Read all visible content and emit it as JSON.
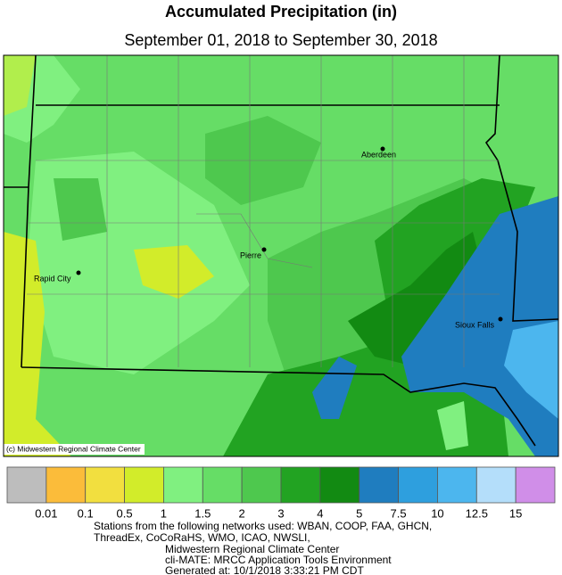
{
  "header": {
    "title": "Accumulated Precipitation (in)",
    "subtitle": "September 01, 2018 to September 30, 2018"
  },
  "map": {
    "cities": [
      "Aberdeen",
      "Pierre",
      "Rapid City",
      "Sioux Falls"
    ],
    "credit": "(c) Midwestern Regional Climate Center"
  },
  "legend": {
    "colors": [
      "#bdbdbd",
      "#fbbc3a",
      "#f2df3f",
      "#d2ec2a",
      "#80f080",
      "#66dd66",
      "#4ec84e",
      "#22a322",
      "#128a12",
      "#1f7dbf",
      "#2e9fde",
      "#4cb6ee",
      "#b4defa",
      "#d08ee8"
    ],
    "labels": [
      0.01,
      0.1,
      0.5,
      1,
      1.5,
      2,
      3,
      4,
      5,
      7.5,
      10,
      12.5,
      15
    ]
  },
  "footer": [
    "Stations from the following networks used: WBAN, COOP, FAA, GHCN,",
    "ThreadEx, CoCoRaHS, WMO, ICAO, NWSLI,",
    "Midwestern Regional Climate Center",
    "cli-MATE: MRCC Application Tools Environment",
    "Generated at: 10/1/2018 3:33:21 PM CDT"
  ]
}
